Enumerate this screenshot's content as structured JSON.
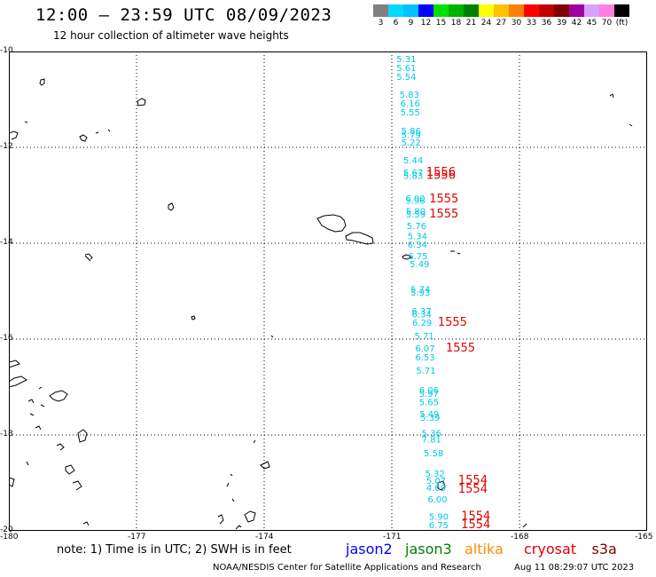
{
  "header": {
    "title": "12:00 – 23:59 UTC 08/09/2023",
    "subtitle": "12 hour collection of altimeter wave heights"
  },
  "legend": {
    "unit": "(ft)",
    "bins": [
      {
        "label": "3",
        "color": "#808080"
      },
      {
        "label": "6",
        "color": "#00d8ff"
      },
      {
        "label": "9",
        "color": "#00c0ff"
      },
      {
        "label": "12",
        "color": "#0000ff"
      },
      {
        "label": "15",
        "color": "#00e000"
      },
      {
        "label": "18",
        "color": "#00b000"
      },
      {
        "label": "21",
        "color": "#008000"
      },
      {
        "label": "24",
        "color": "#ffff00"
      },
      {
        "label": "27",
        "color": "#ffc000"
      },
      {
        "label": "30",
        "color": "#ff8000"
      },
      {
        "label": "33",
        "color": "#ff0000"
      },
      {
        "label": "36",
        "color": "#c00000"
      },
      {
        "label": "39",
        "color": "#800000"
      },
      {
        "label": "42",
        "color": "#a000a0"
      },
      {
        "label": "45",
        "color": "#d8a0ff"
      },
      {
        "label": "70",
        "color": "#ff80e0"
      },
      {
        "label": "",
        "color": "#000000"
      }
    ]
  },
  "map": {
    "lon_range": [
      -180,
      -165
    ],
    "lat_range": [
      -20,
      -10
    ],
    "lat_labels": [
      "-10",
      "-12",
      "-14",
      "-16",
      "-18",
      "-20"
    ],
    "lon_labels": [
      "-180",
      "-177",
      "-174",
      "-171",
      "-168",
      "-165"
    ],
    "colors": {
      "wave_height": "#00c8e8",
      "time_label": "#e00000",
      "land": "#000000"
    },
    "wave_readings": [
      {
        "v": "5.31",
        "lat": -10.22,
        "lon": -170.89
      },
      {
        "v": "5.61",
        "lat": -10.41,
        "lon": -170.89
      },
      {
        "v": "5.54",
        "lat": -10.59,
        "lon": -170.89
      },
      {
        "v": "5.83",
        "lat": -10.96,
        "lon": -170.82
      },
      {
        "v": "6.16",
        "lat": -11.15,
        "lon": -170.8
      },
      {
        "v": "5.55",
        "lat": -11.33,
        "lon": -170.8
      },
      {
        "v": "5.86",
        "lat": -11.72,
        "lon": -170.78
      },
      {
        "v": "5.79",
        "lat": -11.81,
        "lon": -170.78
      },
      {
        "v": "5.22",
        "lat": -11.96,
        "lon": -170.78
      },
      {
        "v": "5.44",
        "lat": -12.33,
        "lon": -170.73
      },
      {
        "v": "5.67",
        "lat": -12.59,
        "lon": -170.73
      },
      {
        "v": "5.83",
        "lat": -12.66,
        "lon": -170.73
      },
      {
        "v": "6.00",
        "lat": -13.13,
        "lon": -170.68
      },
      {
        "v": "5.96",
        "lat": -13.18,
        "lon": -170.68
      },
      {
        "v": "5.80",
        "lat": -13.4,
        "lon": -170.67
      },
      {
        "v": "5.59",
        "lat": -13.46,
        "lon": -170.67
      },
      {
        "v": "5.76",
        "lat": -13.7,
        "lon": -170.65
      },
      {
        "v": "5.34",
        "lat": -13.92,
        "lon": -170.63
      },
      {
        "v": "6.34",
        "lat": -14.09,
        "lon": -170.63
      },
      {
        "v": "6.75",
        "lat": -14.33,
        "lon": -170.62
      },
      {
        "v": "5.49",
        "lat": -14.5,
        "lon": -170.58
      },
      {
        "v": "5.74",
        "lat": -15.03,
        "lon": -170.56
      },
      {
        "v": "5.93",
        "lat": -15.09,
        "lon": -170.56
      },
      {
        "v": "6.37",
        "lat": -15.48,
        "lon": -170.53
      },
      {
        "v": "6.34",
        "lat": -15.55,
        "lon": -170.53
      },
      {
        "v": "6.29",
        "lat": -15.72,
        "lon": -170.52
      },
      {
        "v": "5.71",
        "lat": -16.0,
        "lon": -170.47
      },
      {
        "v": "6.07",
        "lat": -16.26,
        "lon": -170.45
      },
      {
        "v": "6.53",
        "lat": -16.44,
        "lon": -170.45
      },
      {
        "v": "5.71",
        "lat": -16.72,
        "lon": -170.43
      },
      {
        "v": "6.06",
        "lat": -17.13,
        "lon": -170.36
      },
      {
        "v": "5.97",
        "lat": -17.2,
        "lon": -170.36
      },
      {
        "v": "5.65",
        "lat": -17.38,
        "lon": -170.36
      },
      {
        "v": "5.49",
        "lat": -17.63,
        "lon": -170.35
      },
      {
        "v": "5.39",
        "lat": -17.7,
        "lon": -170.33
      },
      {
        "v": "5.36",
        "lat": -18.03,
        "lon": -170.3
      },
      {
        "v": "7.81",
        "lat": -18.16,
        "lon": -170.3
      },
      {
        "v": "5.58",
        "lat": -18.44,
        "lon": -170.25
      },
      {
        "v": "5.32",
        "lat": -18.87,
        "lon": -170.22
      },
      {
        "v": "5.07",
        "lat": -19.02,
        "lon": -170.19
      },
      {
        "v": "4.69",
        "lat": -19.17,
        "lon": -170.19
      },
      {
        "v": "6.00",
        "lat": -19.41,
        "lon": -170.16
      },
      {
        "v": "5.90",
        "lat": -19.77,
        "lon": -170.13
      },
      {
        "v": "6.75",
        "lat": -19.94,
        "lon": -170.13
      }
    ],
    "time_stamps": [
      {
        "t": "1556",
        "lat": -12.59,
        "lon": -170.19
      },
      {
        "t": "1556",
        "lat": -12.66,
        "lon": -170.19
      },
      {
        "t": "1555",
        "lat": -13.15,
        "lon": -170.12
      },
      {
        "t": "1555",
        "lat": -13.46,
        "lon": -170.12
      },
      {
        "t": "1555",
        "lat": -15.72,
        "lon": -169.92
      },
      {
        "t": "1555",
        "lat": -16.26,
        "lon": -169.73
      },
      {
        "t": "1554",
        "lat": -19.02,
        "lon": -169.44
      },
      {
        "t": "1554",
        "lat": -19.2,
        "lon": -169.44
      },
      {
        "t": "1554",
        "lat": -19.77,
        "lon": -169.37
      },
      {
        "t": "1554",
        "lat": -19.94,
        "lon": -169.37
      }
    ]
  },
  "footer": {
    "note": "note:  1) Time is in UTC; 2) SWH is in feet",
    "satellites": [
      {
        "name": "jason2",
        "color": "#0000ff"
      },
      {
        "name": "jason3",
        "color": "#008000"
      },
      {
        "name": "altika",
        "color": "#ff8c00"
      },
      {
        "name": "cryosat",
        "color": "#e00000"
      },
      {
        "name": "s3a",
        "color": "#800000"
      }
    ],
    "credit": "NOAA/NESDIS Center for Satellite Applications and Research",
    "timestamp": "Aug 11 08:29:07 UTC 2023"
  }
}
